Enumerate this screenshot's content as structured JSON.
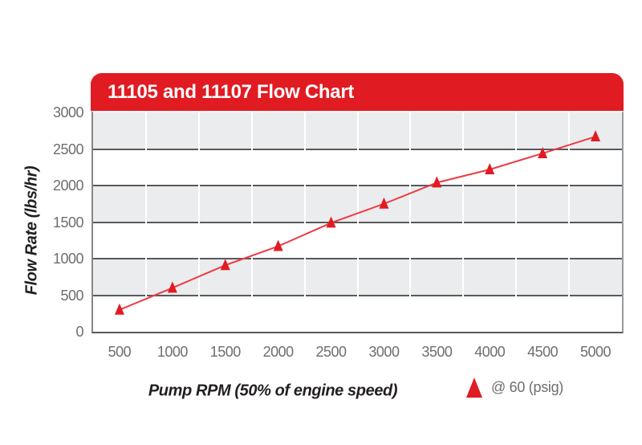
{
  "header": {
    "title": "11105 and 11107 Flow Chart",
    "bg_color": "#e11b22",
    "text_color": "#ffffff"
  },
  "chart_data": {
    "type": "line",
    "title": "11105 and 11107 Flow Chart",
    "xlabel": "Pump RPM (50% of engine speed)",
    "ylabel": "Flow Rate (lbs/hr)",
    "x": [
      500,
      1000,
      1500,
      2000,
      2500,
      3000,
      3500,
      4000,
      4500,
      5000
    ],
    "series": [
      {
        "name": "@ 60 (psig)",
        "marker": "triangle-up",
        "marker_color": "#e11b22",
        "line_color": "#ee3a41",
        "values": [
          300,
          600,
          910,
          1170,
          1490,
          1750,
          2040,
          2220,
          2440,
          2670
        ]
      }
    ],
    "ylim": [
      0,
      3000
    ],
    "ytick_step": 500,
    "xtick_labels": [
      "500",
      "1000",
      "1500",
      "2000",
      "2500",
      "3000",
      "3500",
      "4000",
      "4500",
      "5000"
    ],
    "ytick_labels": [
      "0",
      "500",
      "1000",
      "1500",
      "2000",
      "2500",
      "3000"
    ],
    "grid": {
      "band_colors": [
        "#ebecee",
        "#ffffff"
      ],
      "h_line_color": "#58595b",
      "v_line_color": "#ffffff"
    },
    "legend": {
      "position": "bottom-right",
      "label": "@ 60 (psig)",
      "marker_color": "#e11b22"
    }
  }
}
